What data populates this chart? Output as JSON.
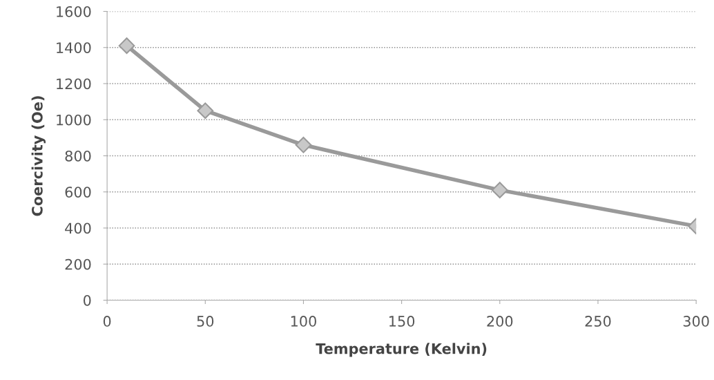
{
  "chart_data": {
    "type": "line",
    "xlabel": "Temperature (Kelvin)",
    "ylabel": "Coercivity (Oe)",
    "x": [
      10,
      50,
      100,
      200,
      300
    ],
    "series": [
      {
        "color": "#9a9a9a",
        "values": [
          1410,
          1050,
          860,
          610,
          410
        ]
      }
    ],
    "xlim": [
      0,
      300
    ],
    "xticks": [
      0,
      50,
      100,
      150,
      200,
      250,
      300
    ],
    "ylim": [
      0,
      1600
    ],
    "yticks": [
      0,
      200,
      400,
      600,
      800,
      1000,
      1200,
      1400,
      1600
    ],
    "grid": "y",
    "marker": "diamond",
    "line_style": "solid",
    "legend": false
  }
}
